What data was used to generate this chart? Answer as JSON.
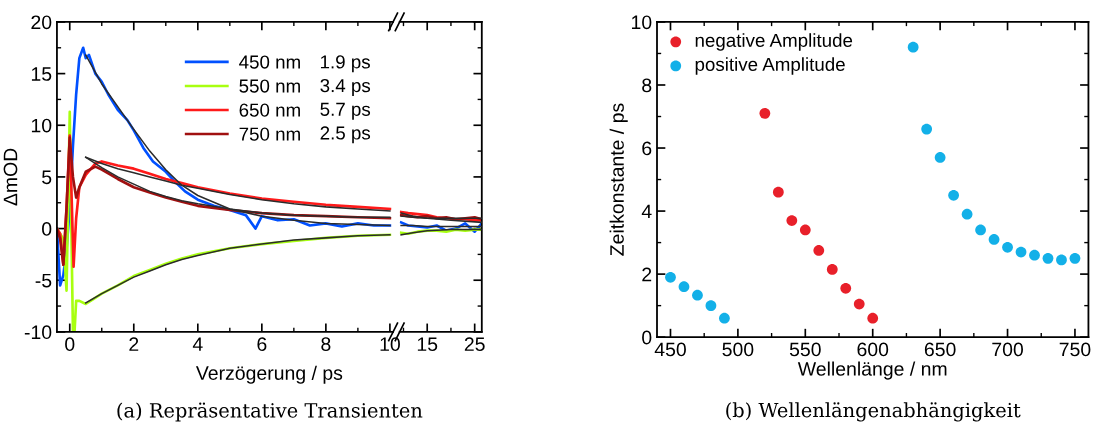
{
  "chart_data": [
    {
      "type": "line",
      "ylabel": "ΔmOD",
      "xlabel": "Verzögerung / ps",
      "xlim": [
        -0.4,
        10.1
      ],
      "xticks": [
        0,
        2,
        4,
        6,
        8,
        10
      ],
      "ylim": [
        -10,
        20
      ],
      "yticks": [
        -10,
        -5,
        0,
        5,
        10,
        15,
        20
      ],
      "legend": "top right",
      "grid": false,
      "annotations": [
        "1.9 ps",
        "3.4 ps",
        "5.7 ps",
        "2.5 ps",
        "(a) Repräsentative Transienten"
      ],
      "series": [
        {
          "name": "450 nm",
          "color": "#0050ff",
          "x": [
            -0.4,
            -0.3,
            -0.2,
            -0.1,
            0,
            0.1,
            0.2,
            0.3,
            0.42,
            0.5,
            0.6,
            0.8,
            1,
            1.2,
            1.5,
            1.8,
            2,
            2.3,
            2.6,
            3,
            3.3,
            3.6,
            4,
            4.5,
            5,
            5.5,
            5.8,
            6,
            6.5,
            7,
            7.5,
            8,
            8.5,
            9,
            9.5,
            10
          ],
          "values": [
            0,
            -5.5,
            -4.5,
            -2,
            2,
            8,
            13,
            16.5,
            17.5,
            16.5,
            16.8,
            15,
            14.2,
            13,
            11.5,
            10.5,
            9.5,
            7.8,
            6.5,
            5.5,
            4.5,
            3.6,
            2.8,
            2.2,
            1.8,
            1.3,
            0.0,
            1.2,
            0.8,
            0.9,
            0.3,
            0.5,
            0.2,
            0.5,
            0.3,
            0.3
          ]
        },
        {
          "name": "550 nm",
          "color": "#a8ff10",
          "x": [
            -0.4,
            -0.2,
            -0.1,
            0,
            0.05,
            0.1,
            0.15,
            0.2,
            0.3,
            0.5,
            0.7,
            1,
            1.5,
            2,
            2.5,
            3,
            3.5,
            4,
            5,
            6,
            7,
            8,
            9,
            10
          ],
          "values": [
            0,
            -1,
            -6,
            11.3,
            0,
            -10,
            -10,
            -7,
            -7,
            -7.3,
            -6.9,
            -6.3,
            -5.5,
            -4.6,
            -4,
            -3.4,
            -2.9,
            -2.5,
            -1.9,
            -1.5,
            -1.2,
            -0.9,
            -0.7,
            -0.6
          ]
        },
        {
          "name": "650 nm",
          "color": "#ff1a1a",
          "x": [
            -0.4,
            -0.3,
            -0.2,
            -0.1,
            0,
            0.05,
            0.12,
            0.2,
            0.3,
            0.5,
            0.8,
            1,
            1.5,
            2,
            2.5,
            3,
            3.5,
            4,
            5,
            6,
            7,
            8,
            9,
            10
          ],
          "values": [
            0,
            -0.5,
            -3.5,
            2,
            9,
            4,
            -3.7,
            1,
            4,
            5.2,
            6.3,
            6.5,
            6.1,
            5.8,
            5.3,
            4.8,
            4.4,
            4.0,
            3.4,
            2.9,
            2.6,
            2.3,
            2.1,
            1.9
          ]
        },
        {
          "name": "750 nm",
          "color": "#a01010",
          "x": [
            -0.4,
            -0.3,
            -0.2,
            -0.1,
            0,
            0.1,
            0.2,
            0.3,
            0.5,
            0.8,
            1,
            1.5,
            2,
            2.5,
            3,
            3.5,
            4,
            5,
            6,
            7,
            8,
            9,
            10
          ],
          "values": [
            0,
            -1,
            -3.5,
            2,
            8.8,
            5,
            3.0,
            4,
            5.5,
            6.0,
            5.7,
            4.8,
            4.0,
            3.5,
            3.0,
            2.6,
            2.2,
            1.8,
            1.5,
            1.3,
            1.2,
            1.1,
            1.0
          ]
        },
        {
          "color": "#2b2b2b",
          "x": [
            0.5,
            1,
            1.5,
            2,
            2.5,
            3,
            3.5,
            4,
            5,
            6,
            7,
            8,
            9,
            10
          ],
          "values": [
            16.8,
            14,
            11.8,
            9.6,
            7.5,
            5.7,
            4.2,
            3.2,
            1.9,
            1.2,
            0.8,
            0.5,
            0.4,
            0.3
          ]
        },
        {
          "color": "#2b2b2b",
          "x": [
            0.5,
            1,
            1.5,
            2,
            2.5,
            3,
            3.5,
            4,
            5,
            6,
            7,
            8,
            9,
            10
          ],
          "values": [
            -7.2,
            -6.3,
            -5.5,
            -4.7,
            -4.1,
            -3.5,
            -3.0,
            -2.6,
            -1.9,
            -1.5,
            -1.1,
            -0.9,
            -0.7,
            -0.6
          ]
        },
        {
          "color": "#2b2b2b",
          "x": [
            0.5,
            1,
            1.5,
            2,
            2.5,
            3,
            3.5,
            4,
            5,
            6,
            7,
            8,
            9,
            10
          ],
          "values": [
            6.9,
            6.3,
            5.8,
            5.4,
            5.0,
            4.6,
            4.2,
            3.9,
            3.3,
            2.8,
            2.4,
            2.1,
            1.9,
            1.7
          ]
        },
        {
          "color": "#2b2b2b",
          "x": [
            0.5,
            1,
            1.5,
            2,
            2.5,
            3,
            3.5,
            4,
            5,
            6,
            7,
            8,
            9,
            10
          ],
          "values": [
            6.9,
            5.9,
            5.0,
            4.3,
            3.6,
            3.1,
            2.7,
            2.4,
            1.9,
            1.5,
            1.3,
            1.2,
            1.1,
            1.1
          ]
        }
      ]
    },
    {
      "type": "line",
      "xlim": [
        9.2,
        26.5
      ],
      "xticks": [
        15,
        25
      ],
      "ylim": [
        -10,
        20
      ],
      "tick_labels": "x",
      "grid": false,
      "series": [
        {
          "color": "#0050ff",
          "x": [
            9.5,
            11,
            13,
            15,
            17,
            19,
            21,
            23,
            25,
            26.5
          ],
          "values": [
            0.6,
            0.3,
            0.2,
            0.1,
            0.3,
            -0.2,
            0.0,
            0.5,
            -0.3,
            0.5
          ]
        },
        {
          "color": "#a8ff10",
          "x": [
            9.5,
            11,
            13,
            15,
            17,
            19,
            21,
            23,
            25,
            26.5
          ],
          "values": [
            -0.4,
            -0.5,
            -0.3,
            -0.2,
            -0.2,
            -0.3,
            -0.1,
            -0.2,
            -0.1,
            -0.1
          ]
        },
        {
          "color": "#ff1a1a",
          "x": [
            9.5,
            11,
            13,
            15,
            17,
            19,
            21,
            23,
            25,
            26.5
          ],
          "values": [
            1.6,
            1.5,
            1.4,
            1.3,
            1.1,
            1.0,
            0.9,
            0.9,
            0.8,
            0.8
          ]
        },
        {
          "color": "#a01010",
          "x": [
            9.5,
            11,
            13,
            15,
            17,
            19,
            21,
            23,
            25,
            26.5
          ],
          "values": [
            1.3,
            1.2,
            1.1,
            1.2,
            1.0,
            1.1,
            0.9,
            1.0,
            1.1,
            0.9
          ]
        },
        {
          "color": "#2b2b2b",
          "x": [
            9.5,
            12,
            15,
            20,
            26.5
          ],
          "values": [
            0.3,
            0.3,
            0.2,
            0.2,
            0.2
          ]
        },
        {
          "color": "#2b2b2b",
          "x": [
            9.5,
            12,
            15,
            20,
            26.5
          ],
          "values": [
            -0.6,
            -0.4,
            -0.2,
            -0.1,
            -0.1
          ]
        },
        {
          "color": "#2b2b2b",
          "x": [
            9.5,
            12,
            15,
            20,
            26.5
          ],
          "values": [
            1.5,
            1.2,
            1.0,
            0.8,
            0.6
          ]
        },
        {
          "color": "#2b2b2b",
          "x": [
            9.5,
            12,
            15,
            20,
            26.5
          ],
          "values": [
            1.2,
            1.1,
            1.0,
            1.0,
            1.0
          ]
        }
      ]
    },
    {
      "type": "scatter",
      "xlabel": "Wellenlänge / nm",
      "ylabel": "Zeitkonstante / ps",
      "xlim": [
        440,
        760
      ],
      "xticks": [
        450,
        500,
        550,
        600,
        650,
        700,
        750
      ],
      "ylim": [
        0,
        10
      ],
      "yticks": [
        0,
        2,
        4,
        6,
        8,
        10
      ],
      "legend": "top left",
      "grid": false,
      "marker": "circle",
      "annotations": [
        "(b) Wellenlängenabhängigkeit"
      ],
      "series": [
        {
          "name": "negative Amplitude",
          "color": "#e8202a",
          "x": [
            520,
            530,
            540,
            550,
            560,
            570,
            580,
            590,
            600
          ],
          "values": [
            7.1,
            4.6,
            3.7,
            3.4,
            2.75,
            2.15,
            1.55,
            1.05,
            0.6
          ]
        },
        {
          "name": "positive Amplitude",
          "color": "#13b0e8",
          "x": [
            450,
            460,
            470,
            480,
            490,
            630,
            640,
            650,
            660,
            670,
            680,
            690,
            700,
            710,
            720,
            730,
            740,
            750
          ],
          "values": [
            1.9,
            1.6,
            1.33,
            1.0,
            0.6,
            9.2,
            6.6,
            5.7,
            4.5,
            3.9,
            3.4,
            3.1,
            2.85,
            2.7,
            2.6,
            2.5,
            2.45,
            2.5
          ]
        }
      ]
    }
  ]
}
